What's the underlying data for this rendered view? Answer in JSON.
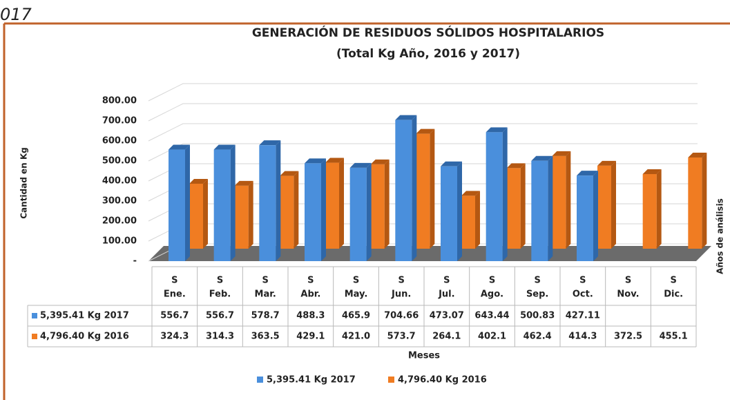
{
  "corner_text": "017",
  "chart_data": {
    "type": "bar",
    "title": "GENERACIÓN DE RESIDUOS SÓLIDOS HOSPITALARIOS",
    "subtitle": "(Total Kg Año,  2016 y 2017)",
    "y_label": "Cantidad en Kg",
    "x_label": "Meses",
    "depth_label": "Años de análisis",
    "categories": [
      [
        "S",
        "Ene."
      ],
      [
        "S",
        "Feb."
      ],
      [
        "S",
        "Mar."
      ],
      [
        "S",
        "Abr."
      ],
      [
        "S",
        "May."
      ],
      [
        "S",
        "Jun."
      ],
      [
        "S",
        "Jul."
      ],
      [
        "S",
        "Ago."
      ],
      [
        "S",
        "Sep."
      ],
      [
        "S",
        "Oct."
      ],
      [
        "S",
        "Nov."
      ],
      [
        "S",
        "Dic."
      ]
    ],
    "series": [
      {
        "name": "5,395.41 Kg 2017",
        "color": "#4a8fdc",
        "side_color": "#2f67a8",
        "values": [
          556.7,
          556.7,
          578.7,
          488.3,
          465.9,
          704.66,
          473.07,
          643.44,
          500.83,
          427.11,
          null,
          null
        ],
        "value_labels": [
          "556.7",
          "556.7",
          "578.7",
          "488.3",
          "465.9",
          "704.66",
          "473.07",
          "643.44",
          "500.83",
          "427.11",
          null,
          null
        ]
      },
      {
        "name": "4,796.40 Kg 2016",
        "color": "#f07c22",
        "side_color": "#b45812",
        "values": [
          324.3,
          314.3,
          363.5,
          429.1,
          421.0,
          573.7,
          264.1,
          402.1,
          462.4,
          414.3,
          372.5,
          455.1
        ],
        "value_labels": [
          "324.3",
          "314.3",
          "363.5",
          "429.1",
          "421.0",
          "573.7",
          "264.1",
          "402.1",
          "462.4",
          "414.3",
          "372.5",
          "455.1"
        ]
      }
    ],
    "ylim": [
      0,
      800
    ],
    "yticks": [
      {
        "value": 0,
        "label": "-"
      },
      {
        "value": 100,
        "label": "100.00"
      },
      {
        "value": 200,
        "label": "200.00"
      },
      {
        "value": 300,
        "label": "300.00"
      },
      {
        "value": 400,
        "label": "400.00"
      },
      {
        "value": 500,
        "label": "500.00"
      },
      {
        "value": 600,
        "label": "600.00"
      },
      {
        "value": 700,
        "label": "700.00"
      },
      {
        "value": 800,
        "label": "800.00"
      }
    ],
    "grid": true,
    "legend": "bottom"
  }
}
